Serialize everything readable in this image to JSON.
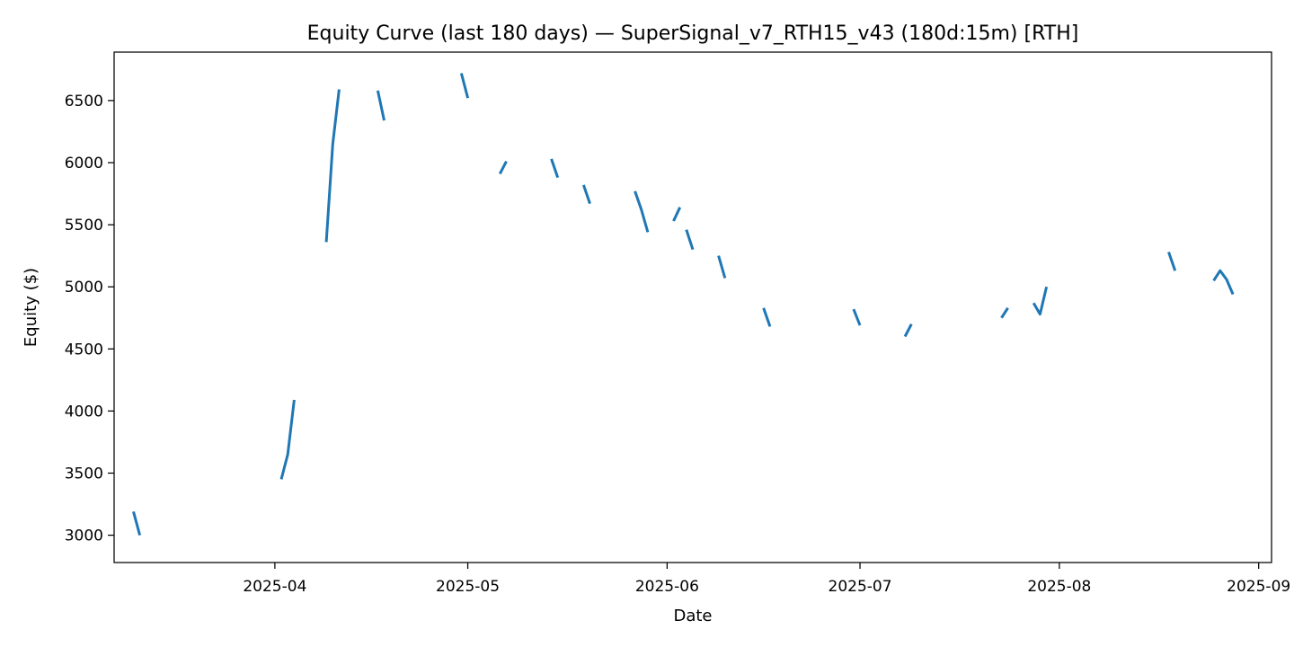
{
  "chart_data": {
    "type": "line",
    "title": "Equity Curve (last 180 days) — SuperSignal_v7_RTH15_v43 (180d:15m) [RTH]",
    "xlabel": "Date",
    "ylabel": "Equity ($)",
    "x_scale": "date",
    "xlim": [
      "2025-03-07",
      "2025-09-03"
    ],
    "ylim": [
      2780,
      6890
    ],
    "grid": false,
    "legend": "none",
    "line_color": "#1f77b4",
    "x_ticks": [
      {
        "date": "2025-04-01",
        "label": "2025-04"
      },
      {
        "date": "2025-05-01",
        "label": "2025-05"
      },
      {
        "date": "2025-06-01",
        "label": "2025-06"
      },
      {
        "date": "2025-07-01",
        "label": "2025-07"
      },
      {
        "date": "2025-08-01",
        "label": "2025-08"
      },
      {
        "date": "2025-09-01",
        "label": "2025-09"
      }
    ],
    "y_ticks": [
      3000,
      3500,
      4000,
      4500,
      5000,
      5500,
      6000,
      6500
    ],
    "series": [
      {
        "segments": [
          [
            [
              "2025-03-10",
              3190
            ],
            [
              "2025-03-11",
              3000
            ]
          ],
          [
            [
              "2025-04-02",
              3450
            ],
            [
              "2025-04-03",
              3650
            ],
            [
              "2025-04-04",
              4090
            ]
          ],
          [
            [
              "2025-04-09",
              5360
            ],
            [
              "2025-04-10",
              6150
            ],
            [
              "2025-04-11",
              6590
            ]
          ],
          [
            [
              "2025-04-17",
              6580
            ],
            [
              "2025-04-18",
              6340
            ]
          ],
          [
            [
              "2025-04-30",
              6720
            ],
            [
              "2025-05-01",
              6520
            ]
          ],
          [
            [
              "2025-05-06",
              5910
            ],
            [
              "2025-05-07",
              6010
            ]
          ],
          [
            [
              "2025-05-14",
              6030
            ],
            [
              "2025-05-15",
              5880
            ]
          ],
          [
            [
              "2025-05-19",
              5820
            ],
            [
              "2025-05-20",
              5670
            ]
          ],
          [
            [
              "2025-05-27",
              5770
            ],
            [
              "2025-05-28",
              5620
            ],
            [
              "2025-05-29",
              5440
            ]
          ],
          [
            [
              "2025-06-02",
              5530
            ],
            [
              "2025-06-03",
              5640
            ]
          ],
          [
            [
              "2025-06-04",
              5460
            ],
            [
              "2025-06-05",
              5300
            ]
          ],
          [
            [
              "2025-06-09",
              5250
            ],
            [
              "2025-06-10",
              5070
            ]
          ],
          [
            [
              "2025-06-16",
              4830
            ],
            [
              "2025-06-17",
              4680
            ]
          ],
          [
            [
              "2025-06-30",
              4820
            ],
            [
              "2025-07-01",
              4690
            ]
          ],
          [
            [
              "2025-07-08",
              4600
            ],
            [
              "2025-07-09",
              4700
            ]
          ],
          [
            [
              "2025-07-23",
              4750
            ],
            [
              "2025-07-24",
              4830
            ]
          ],
          [
            [
              "2025-07-28",
              4870
            ],
            [
              "2025-07-29",
              4780
            ],
            [
              "2025-07-30",
              5000
            ]
          ],
          [
            [
              "2025-08-18",
              5280
            ],
            [
              "2025-08-19",
              5130
            ]
          ],
          [
            [
              "2025-08-25",
              5050
            ],
            [
              "2025-08-26",
              5130
            ],
            [
              "2025-08-27",
              5060
            ],
            [
              "2025-08-28",
              4940
            ]
          ]
        ]
      }
    ]
  }
}
